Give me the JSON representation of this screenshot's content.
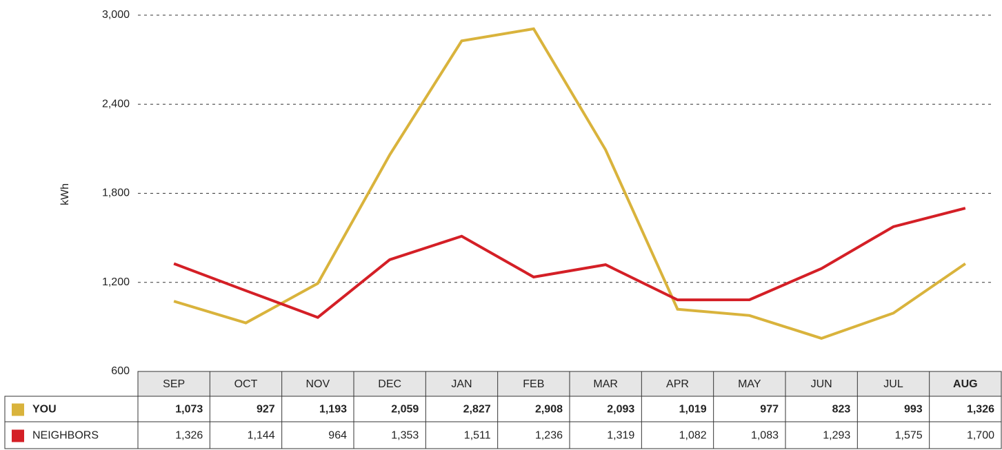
{
  "chart_data": {
    "type": "line",
    "ylabel": "kWh",
    "categories": [
      "SEP",
      "OCT",
      "NOV",
      "DEC",
      "JAN",
      "FEB",
      "MAR",
      "APR",
      "MAY",
      "JUN",
      "JUL",
      "AUG"
    ],
    "series": [
      {
        "name": "YOU",
        "color": "#d9b33c",
        "values": [
          1073,
          927,
          1193,
          2059,
          2827,
          2908,
          2093,
          1019,
          977,
          823,
          993,
          1326
        ],
        "value_labels": [
          "1,073",
          "927",
          "1,193",
          "2,059",
          "2,827",
          "2,908",
          "2,093",
          "1,019",
          "977",
          "823",
          "993",
          "1,326"
        ]
      },
      {
        "name": "NEIGHBORS",
        "color": "#d41f26",
        "values": [
          1326,
          1144,
          964,
          1353,
          1511,
          1236,
          1319,
          1082,
          1083,
          1293,
          1575,
          1700
        ],
        "value_labels": [
          "1,326",
          "1,144",
          "964",
          "1,353",
          "1,511",
          "1,236",
          "1,319",
          "1,082",
          "1,083",
          "1,293",
          "1,575",
          "1,700"
        ]
      }
    ],
    "ylim": [
      600,
      3000
    ],
    "yticks": [
      600,
      {
        "value": 1200,
        "label": "1,200"
      },
      {
        "value": 1800,
        "label": "1,800"
      },
      {
        "value": 2400,
        "label": "2,400"
      },
      {
        "value": 3000,
        "label": "3,000"
      }
    ],
    "grid": true
  }
}
